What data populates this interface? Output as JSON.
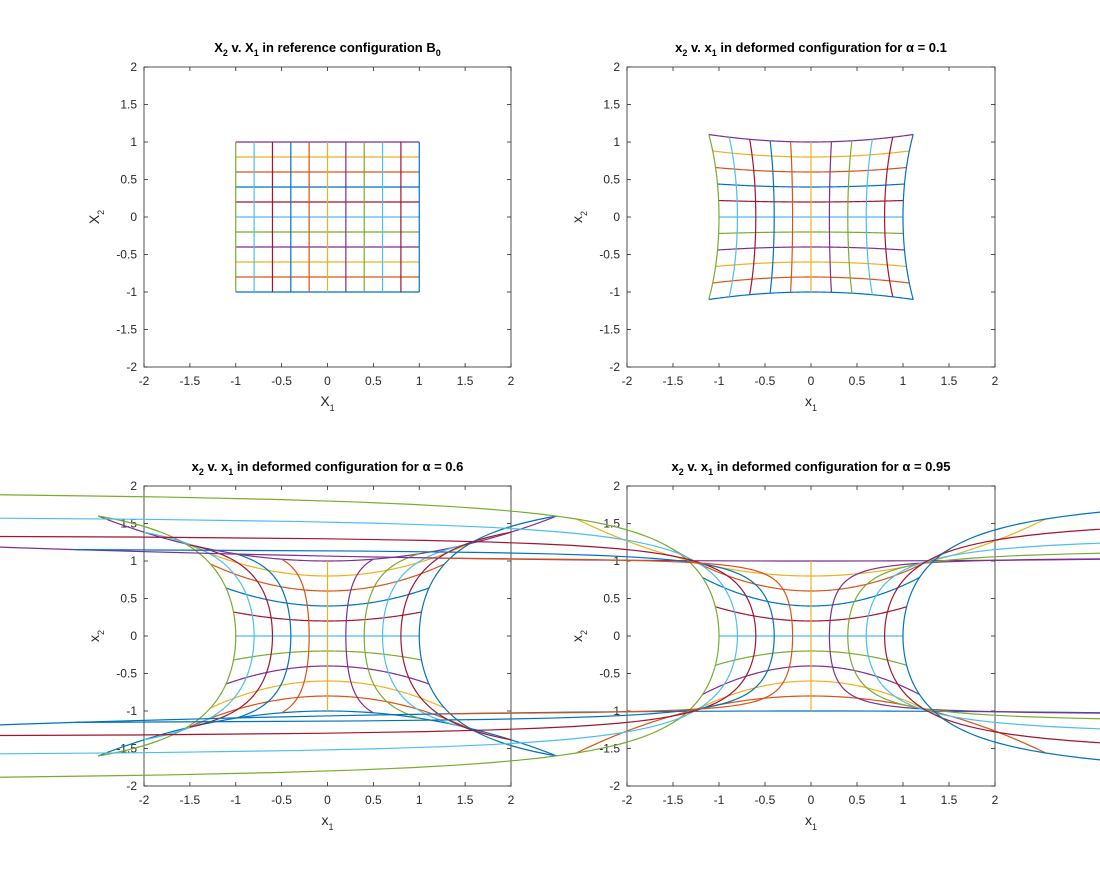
{
  "chart_data": [
    {
      "type": "line",
      "title": {
        "a": "X",
        "b": "2",
        "c": " v. X",
        "d": "1",
        "e": " in reference configuration B",
        "f": "0"
      },
      "xlabel": {
        "base": "X",
        "sub": "1"
      },
      "ylabel": {
        "base": "X",
        "sub": "2"
      },
      "alpha": 0,
      "xlim": [
        -2,
        2
      ],
      "ylim": [
        -2,
        2
      ],
      "xticks": [
        "-2",
        "-1.5",
        "-1",
        "-0.5",
        "0",
        "0.5",
        "1",
        "1.5",
        "2"
      ],
      "yticks": [
        "-2",
        "-1.5",
        "-1",
        "-0.5",
        "0",
        "0.5",
        "1",
        "1.5",
        "2"
      ],
      "grid": false
    },
    {
      "type": "line",
      "title": {
        "a": "x",
        "b": "2",
        "c": " v. x",
        "d": "1",
        "e": " in deformed configuration for ",
        "f": "α",
        "g": " = 0.1"
      },
      "xlabel": {
        "base": "x",
        "sub": "1"
      },
      "ylabel": {
        "base": "x",
        "sub": "2"
      },
      "alpha": 0.1,
      "xlim": [
        -2,
        2
      ],
      "ylim": [
        -2,
        2
      ],
      "xticks": [
        "-2",
        "-1.5",
        "-1",
        "-0.5",
        "0",
        "0.5",
        "1",
        "1.5",
        "2"
      ],
      "yticks": [
        "-2",
        "-1.5",
        "-1",
        "-0.5",
        "0",
        "0.5",
        "1",
        "1.5",
        "2"
      ],
      "grid": false
    },
    {
      "type": "line",
      "title": {
        "a": "x",
        "b": "2",
        "c": " v. x",
        "d": "1",
        "e": " in deformed configuration for ",
        "f": "α",
        "g": " = 0.6"
      },
      "xlabel": {
        "base": "x",
        "sub": "1"
      },
      "ylabel": {
        "base": "x",
        "sub": "2"
      },
      "alpha": 0.6,
      "xlim": [
        -2,
        2
      ],
      "ylim": [
        -2,
        2
      ],
      "xticks": [
        "-2",
        "-1.5",
        "-1",
        "-0.5",
        "0",
        "0.5",
        "1",
        "1.5",
        "2"
      ],
      "yticks": [
        "-2",
        "-1.5",
        "-1",
        "-0.5",
        "0",
        "0.5",
        "1",
        "1.5",
        "2"
      ],
      "grid": false
    },
    {
      "type": "line",
      "title": {
        "a": "x",
        "b": "2",
        "c": " v. x",
        "d": "1",
        "e": " in deformed configuration for ",
        "f": "α",
        "g": " = 0.95"
      },
      "xlabel": {
        "base": "x",
        "sub": "1"
      },
      "ylabel": {
        "base": "x",
        "sub": "2"
      },
      "alpha": 0.95,
      "xlim": [
        -2,
        2
      ],
      "ylim": [
        -2,
        2
      ],
      "xticks": [
        "-2",
        "-1.5",
        "-1",
        "-0.5",
        "0",
        "0.5",
        "1",
        "1.5",
        "2"
      ],
      "yticks": [
        "-2",
        "-1.5",
        "-1",
        "-0.5",
        "0",
        "0.5",
        "1",
        "1.5",
        "2"
      ],
      "grid": false
    }
  ],
  "grid_lines": {
    "count": 11,
    "min": -1,
    "max": 1
  },
  "colors": [
    "#0072BD",
    "#D95319",
    "#EDB120",
    "#7E2F8E",
    "#77AC30",
    "#4DBEEE",
    "#A2142F"
  ]
}
